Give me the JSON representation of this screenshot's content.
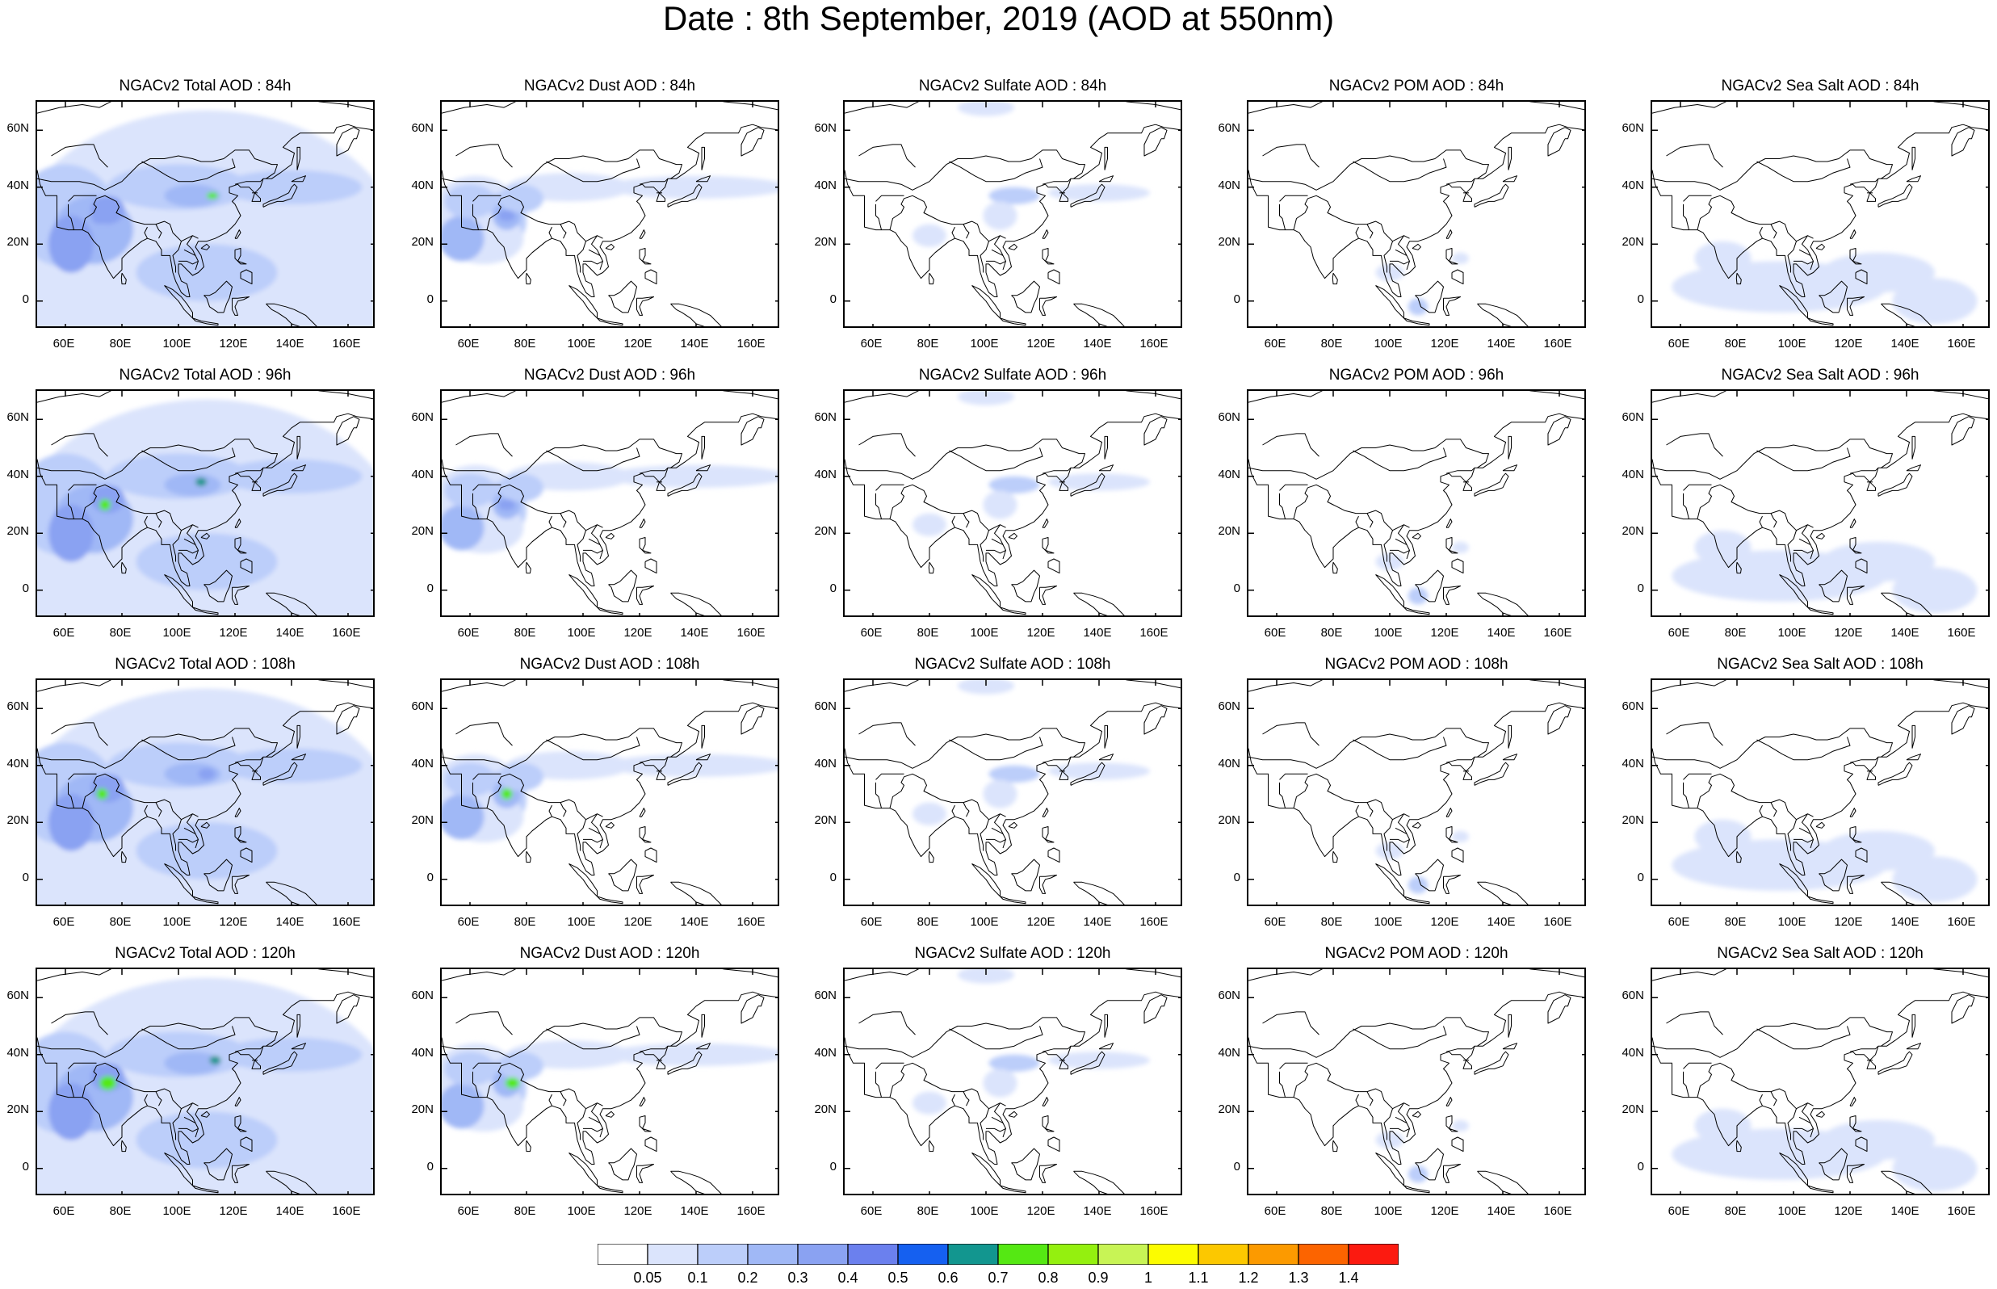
{
  "title": "Date : 8th September, 2019 (AOD at 550nm)",
  "panel_titles": [
    [
      "NGACv2 Total AOD : 84h",
      "NGACv2 Dust AOD : 84h",
      "NGACv2 Sulfate AOD : 84h",
      "NGACv2 POM AOD : 84h",
      "NGACv2 Sea Salt AOD : 84h"
    ],
    [
      "NGACv2 Total AOD : 96h",
      "NGACv2 Dust AOD : 96h",
      "NGACv2 Sulfate AOD : 96h",
      "NGACv2 POM AOD : 96h",
      "NGACv2 Sea Salt AOD : 96h"
    ],
    [
      "NGACv2 Total AOD : 108h",
      "NGACv2 Dust AOD : 108h",
      "NGACv2 Sulfate AOD : 108h",
      "NGACv2 POM AOD : 108h",
      "NGACv2 Sea Salt AOD : 108h"
    ],
    [
      "NGACv2 Total AOD : 120h",
      "NGACv2 Dust AOD : 120h",
      "NGACv2 Sulfate AOD : 120h",
      "NGACv2 POM AOD : 120h",
      "NGACv2 Sea Salt  AOD : 120h"
    ]
  ],
  "lat_labels": [
    "60N",
    "40N",
    "20N",
    "0"
  ],
  "lon_labels": [
    "60E",
    "80E",
    "100E",
    "120E",
    "140E",
    "160E"
  ],
  "map_extent": {
    "lon": [
      50,
      170
    ],
    "lat": [
      -10,
      70
    ]
  },
  "tick_lats": [
    60,
    40,
    20,
    0
  ],
  "tick_lons": [
    60,
    80,
    100,
    120,
    140,
    160
  ],
  "colorbar": {
    "labels": [
      "0.05",
      "0.1",
      "0.2",
      "0.3",
      "0.4",
      "0.5",
      "0.6",
      "0.7",
      "0.8",
      "0.9",
      "1",
      "1.1",
      "1.2",
      "1.3",
      "1.4"
    ],
    "colors": [
      "#ffffff",
      "#dbe4fc",
      "#bccefa",
      "#a0b8f6",
      "#8aa2f2",
      "#6b80ee",
      "#1560f0",
      "#12968f",
      "#55e813",
      "#94f00f",
      "#c8f455",
      "#fcfc00",
      "#fcc800",
      "#fc9a00",
      "#fc6400",
      "#fc1a10"
    ]
  }
}
